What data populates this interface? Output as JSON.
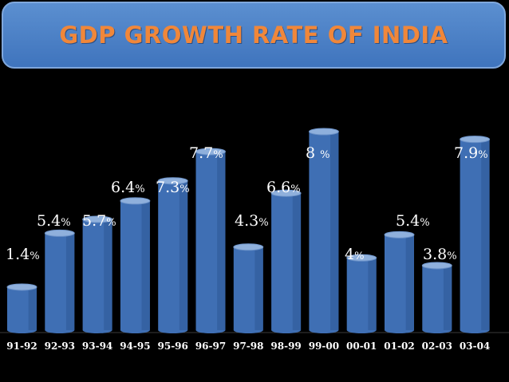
{
  "title": "GDP GROWTH RATE OF INDIA",
  "colors": {
    "background": "#000000",
    "bar_body": "#3f6fb4",
    "bar_top": "#8fb0dc",
    "label_text": "#ffffff",
    "title_text": "#f0873a",
    "title_bg": "#4a80c6"
  },
  "chart_data": {
    "type": "bar",
    "title": "GDP GROWTH RATE OF INDIA",
    "xlabel": "",
    "ylabel": "",
    "ylim": [
      0,
      8.5
    ],
    "grid": false,
    "categories": [
      "91-92",
      "92-93",
      "93-94",
      "94-95",
      "95-96",
      "96-97",
      "97-98",
      "98-99",
      "99-00",
      "00-01",
      "01-02",
      "02-03",
      "03-04"
    ],
    "values": [
      1.4,
      5.4,
      5.7,
      6.4,
      7.3,
      7.7,
      4.3,
      6.6,
      8,
      4,
      5.4,
      3.8,
      7.9
    ],
    "bar_heights_from_image": [
      1.4,
      3.15,
      3.6,
      4.2,
      4.85,
      5.8,
      2.7,
      4.45,
      6.45,
      2.35,
      3.1,
      2.1,
      6.2
    ],
    "data_labels": [
      "1.4%",
      "5.4%",
      "5.7%",
      "6.4%",
      "7.3%",
      "7.7%",
      "4.3%",
      "6.6%",
      "8 %",
      "4%",
      "5.4%",
      "3.8%",
      "7.9%"
    ]
  }
}
